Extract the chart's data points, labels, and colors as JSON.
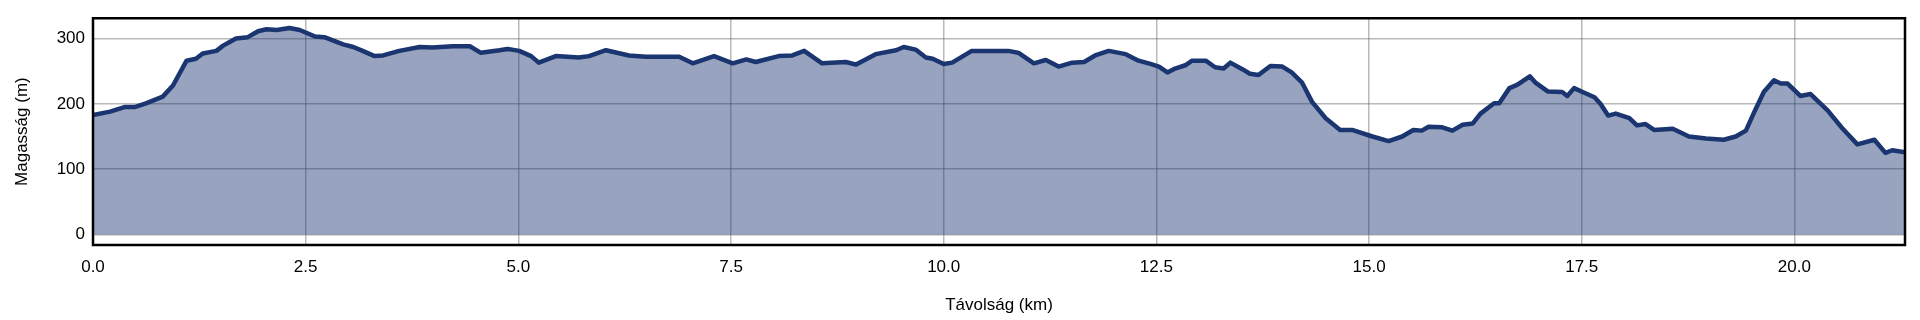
{
  "chart_data": {
    "type": "area",
    "xlabel": "Távolság (km)",
    "ylabel": "Magasság (m)",
    "x": [
      0,
      0.2,
      0.37,
      0.49,
      0.63,
      0.82,
      0.94,
      1.1,
      1.21,
      1.29,
      1.45,
      1.53,
      1.68,
      1.82,
      1.94,
      2.04,
      2.16,
      2.31,
      2.43,
      2.61,
      2.72,
      2.94,
      3.06,
      3.17,
      3.31,
      3.41,
      3.6,
      3.84,
      3.99,
      4.23,
      4.43,
      4.56,
      4.78,
      4.87,
      5.01,
      5.15,
      5.24,
      5.44,
      5.71,
      5.83,
      6.03,
      6.3,
      6.5,
      6.89,
      7.05,
      7.3,
      7.52,
      7.68,
      7.79,
      8.06,
      8.22,
      8.36,
      8.57,
      8.85,
      8.97,
      9.2,
      9.44,
      9.53,
      9.67,
      9.79,
      9.87,
      10.0,
      10.1,
      10.33,
      10.76,
      10.88,
      11.06,
      11.2,
      11.35,
      11.51,
      11.65,
      11.78,
      11.94,
      12.14,
      12.29,
      12.43,
      12.53,
      12.63,
      12.72,
      12.84,
      12.92,
      13.08,
      13.19,
      13.29,
      13.37,
      13.51,
      13.6,
      13.7,
      13.84,
      13.98,
      14.09,
      14.21,
      14.33,
      14.49,
      14.66,
      14.8,
      15.04,
      15.23,
      15.39,
      15.52,
      15.62,
      15.7,
      15.86,
      15.98,
      16.1,
      16.22,
      16.31,
      16.47,
      16.53,
      16.65,
      16.74,
      16.89,
      16.96,
      17.1,
      17.27,
      17.33,
      17.41,
      17.51,
      17.65,
      17.72,
      17.81,
      17.9,
      18.06,
      18.15,
      18.25,
      18.35,
      18.57,
      18.76,
      18.96,
      19.17,
      19.31,
      19.43,
      19.53,
      19.64,
      19.76,
      19.84,
      19.92,
      20.07,
      20.19,
      20.39,
      20.56,
      20.74,
      20.94,
      21.07,
      21.15,
      21.3
    ],
    "series": [
      {
        "color": "#1a3570",
        "values": [
          183,
          188,
          195,
          195,
          201,
          211,
          228,
          266,
          269,
          277,
          281,
          289,
          300,
          302,
          311,
          314,
          313,
          316,
          313,
          303,
          302,
          291,
          287,
          281,
          273,
          274,
          281,
          287,
          286,
          288,
          288,
          278,
          282,
          284,
          281,
          273,
          263,
          273,
          271,
          273,
          282,
          274,
          272,
          272,
          262,
          273,
          262,
          268,
          264,
          273,
          274,
          281,
          262,
          264,
          260,
          276,
          282,
          287,
          283,
          271,
          269,
          261,
          263,
          281,
          281,
          278,
          262,
          267,
          257,
          263,
          264,
          274,
          281,
          276,
          266,
          261,
          257,
          248,
          254,
          259,
          266,
          266,
          256,
          254,
          263,
          253,
          246,
          244,
          258,
          257,
          248,
          233,
          203,
          178,
          160,
          160,
          150,
          143,
          150,
          160,
          159,
          165,
          164,
          159,
          168,
          170,
          185,
          201,
          201,
          224,
          229,
          242,
          232,
          219,
          218,
          212,
          224,
          218,
          210,
          200,
          182,
          185,
          178,
          167,
          169,
          160,
          162,
          150,
          147,
          145,
          150,
          159,
          188,
          218,
          236,
          231,
          231,
          212,
          215,
          190,
          163,
          138,
          145,
          125,
          129,
          126
        ]
      }
    ],
    "xlim": [
      0,
      21.3
    ],
    "ylim": [
      -16,
      331
    ],
    "xticks": [
      {
        "value": 0,
        "label": "0.0"
      },
      2.5,
      {
        "value": 5,
        "label": "5.0"
      },
      7.5,
      {
        "value": 10,
        "label": "10.0"
      },
      12.5,
      {
        "value": 15,
        "label": "15.0"
      },
      17.5,
      {
        "value": 20,
        "label": "20.0"
      }
    ],
    "yticks": [
      0,
      100,
      200,
      300
    ],
    "grid": true,
    "marker": "none",
    "line_style": "solid",
    "legend": false
  }
}
